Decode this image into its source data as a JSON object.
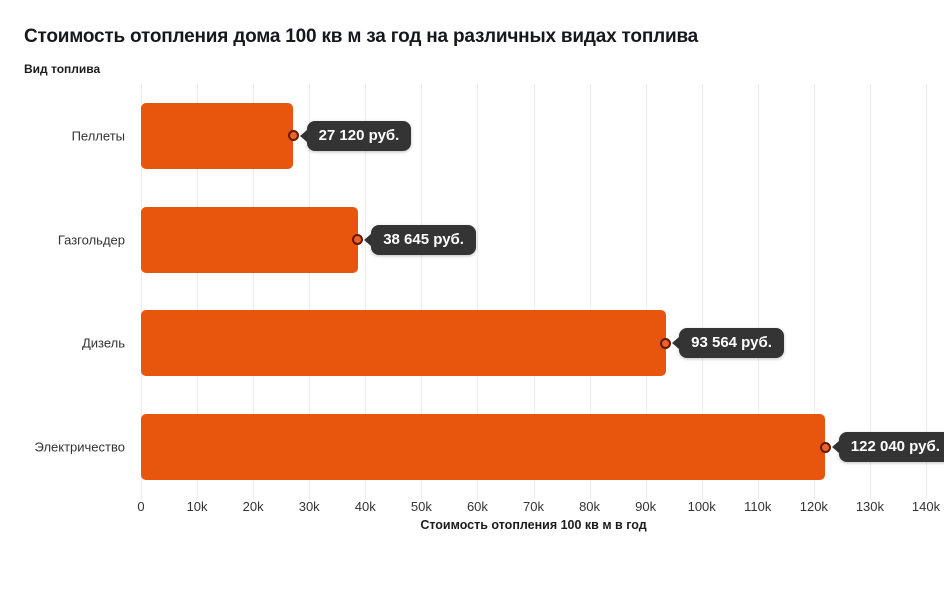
{
  "page": {
    "background": "#ffffff"
  },
  "chart_data": {
    "type": "bar",
    "orientation": "horizontal",
    "title": "Стоимость отопления дома 100 кв м за год на различных видах топлива",
    "ylabel": "Вид топлива",
    "xlabel": "Стоимость отопления 100 кв м в год",
    "categories": [
      "Пеллеты",
      "Газгольдер",
      "Дизель",
      "Электричество"
    ],
    "values": [
      27120,
      38645,
      93564,
      122040
    ],
    "value_labels": [
      "27 120 руб.",
      "38 645 руб.",
      "93 564 руб.",
      "122 040 руб."
    ],
    "xlim": [
      0,
      140000
    ],
    "x_ticks": [
      "0",
      "10k",
      "20k",
      "30k",
      "40k",
      "50k",
      "60k",
      "70k",
      "80k",
      "90k",
      "100k",
      "110k",
      "120k",
      "130k",
      "140k"
    ],
    "grid": "vertical",
    "legend": "none",
    "bar_color": "#E8560D",
    "gridline_color": "#ececec",
    "tooltip_bg": "#343434",
    "tooltip_text_color": "#ffffff",
    "marker_fill_color": "#ee6220",
    "marker_ring_color": "#5c1a09"
  }
}
